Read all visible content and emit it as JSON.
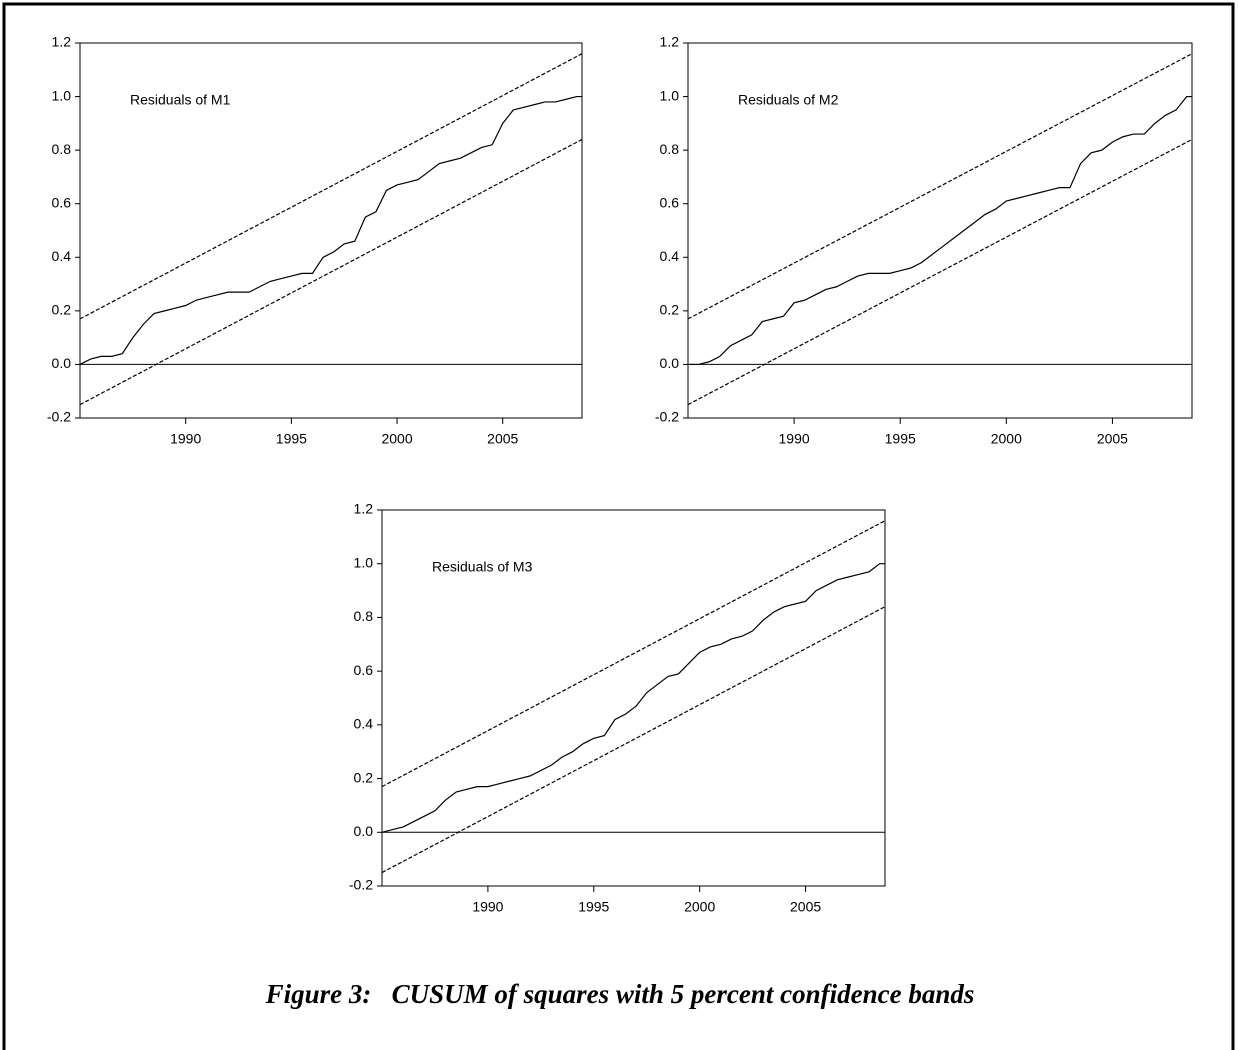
{
  "chart_data": [
    {
      "type": "line",
      "annotation": "Residuals of M1",
      "xlim": [
        1985,
        2008.75
      ],
      "ylim": [
        -0.2,
        1.2
      ],
      "xticks": [
        1990,
        1995,
        2000,
        2005
      ],
      "yticks": [
        -0.2,
        {
          "value": 0,
          "label": "0.0"
        },
        0.2,
        0.4,
        0.6,
        0.8,
        {
          "value": 1,
          "label": "1.0"
        },
        1.2
      ],
      "hline": 0,
      "series": [
        {
          "color": "#000000",
          "style": "solid",
          "x": [
            1985,
            1985.5,
            1986,
            1986.5,
            1987,
            1987.5,
            1988,
            1988.5,
            1989,
            1989.5,
            1990,
            1990.5,
            1991,
            1991.5,
            1992,
            1992.5,
            1993,
            1993.5,
            1994,
            1994.5,
            1995,
            1995.5,
            1996,
            1996.5,
            1997,
            1997.5,
            1998,
            1998.5,
            1999,
            1999.5,
            2000,
            2000.5,
            2001,
            2001.5,
            2002,
            2002.5,
            2003,
            2003.5,
            2004,
            2004.5,
            2005,
            2005.5,
            2006,
            2006.5,
            2007,
            2007.5,
            2008,
            2008.5,
            2008.75
          ],
          "values": [
            0,
            0.02,
            0.03,
            0.03,
            0.04,
            0.1,
            0.15,
            0.19,
            0.2,
            0.21,
            0.22,
            0.24,
            0.25,
            0.26,
            0.27,
            0.27,
            0.27,
            0.29,
            0.31,
            0.32,
            0.33,
            0.34,
            0.34,
            0.4,
            0.42,
            0.45,
            0.46,
            0.55,
            0.57,
            0.65,
            0.67,
            0.68,
            0.69,
            0.72,
            0.75,
            0.76,
            0.77,
            0.79,
            0.81,
            0.82,
            0.9,
            0.95,
            0.96,
            0.97,
            0.98,
            0.98,
            0.99,
            1.0,
            1.0
          ]
        },
        {
          "color": "#000000",
          "style": "dashed",
          "x": [
            1985,
            2008.75
          ],
          "values": [
            0.17,
            1.16
          ]
        },
        {
          "color": "#000000",
          "style": "dashed",
          "x": [
            1985,
            2008.75
          ],
          "values": [
            -0.15,
            0.84
          ]
        }
      ]
    },
    {
      "type": "line",
      "annotation": "Residuals of M2",
      "xlim": [
        1985,
        2008.75
      ],
      "ylim": [
        -0.2,
        1.2
      ],
      "xticks": [
        1990,
        1995,
        2000,
        2005
      ],
      "yticks": [
        -0.2,
        {
          "value": 0,
          "label": "0.0"
        },
        0.2,
        0.4,
        0.6,
        0.8,
        {
          "value": 1,
          "label": "1.0"
        },
        1.2
      ],
      "hline": 0,
      "series": [
        {
          "color": "#000000",
          "style": "solid",
          "x": [
            1985,
            1985.5,
            1986,
            1986.5,
            1987,
            1987.5,
            1988,
            1988.5,
            1989,
            1989.5,
            1990,
            1990.5,
            1991,
            1991.5,
            1992,
            1992.5,
            1993,
            1993.5,
            1994,
            1994.5,
            1995,
            1995.5,
            1996,
            1996.5,
            1997,
            1997.5,
            1998,
            1998.5,
            1999,
            1999.5,
            2000,
            2000.5,
            2001,
            2001.5,
            2002,
            2002.5,
            2003,
            2003.5,
            2004,
            2004.5,
            2005,
            2005.5,
            2006,
            2006.5,
            2007,
            2007.5,
            2008,
            2008.5,
            2008.75
          ],
          "values": [
            0,
            0,
            0.01,
            0.03,
            0.07,
            0.09,
            0.11,
            0.16,
            0.17,
            0.18,
            0.23,
            0.24,
            0.26,
            0.28,
            0.29,
            0.31,
            0.33,
            0.34,
            0.34,
            0.34,
            0.35,
            0.36,
            0.38,
            0.41,
            0.44,
            0.47,
            0.5,
            0.53,
            0.56,
            0.58,
            0.61,
            0.62,
            0.63,
            0.64,
            0.65,
            0.66,
            0.66,
            0.75,
            0.79,
            0.8,
            0.83,
            0.85,
            0.86,
            0.86,
            0.9,
            0.93,
            0.95,
            1.0,
            1.0
          ]
        },
        {
          "color": "#000000",
          "style": "dashed",
          "x": [
            1985,
            2008.75
          ],
          "values": [
            0.17,
            1.16
          ]
        },
        {
          "color": "#000000",
          "style": "dashed",
          "x": [
            1985,
            2008.75
          ],
          "values": [
            -0.15,
            0.84
          ]
        }
      ]
    },
    {
      "type": "line",
      "annotation": "Residuals of M3",
      "xlim": [
        1985,
        2008.75
      ],
      "ylim": [
        -0.2,
        1.2
      ],
      "xticks": [
        1990,
        1995,
        2000,
        2005
      ],
      "yticks": [
        -0.2,
        {
          "value": 0,
          "label": "0.0"
        },
        0.2,
        0.4,
        0.6,
        0.8,
        {
          "value": 1,
          "label": "1.0"
        },
        1.2
      ],
      "hline": 0,
      "series": [
        {
          "color": "#000000",
          "style": "solid",
          "x": [
            1985,
            1985.5,
            1986,
            1986.5,
            1987,
            1987.5,
            1988,
            1988.5,
            1989,
            1989.5,
            1990,
            1990.5,
            1991,
            1991.5,
            1992,
            1992.5,
            1993,
            1993.5,
            1994,
            1994.5,
            1995,
            1995.5,
            1996,
            1996.5,
            1997,
            1997.5,
            1998,
            1998.5,
            1999,
            1999.5,
            2000,
            2000.5,
            2001,
            2001.5,
            2002,
            2002.5,
            2003,
            2003.5,
            2004,
            2004.5,
            2005,
            2005.5,
            2006,
            2006.5,
            2007,
            2007.5,
            2008,
            2008.5,
            2008.75
          ],
          "values": [
            0,
            0.01,
            0.02,
            0.04,
            0.06,
            0.08,
            0.12,
            0.15,
            0.16,
            0.17,
            0.17,
            0.18,
            0.19,
            0.2,
            0.21,
            0.23,
            0.25,
            0.28,
            0.3,
            0.33,
            0.35,
            0.36,
            0.42,
            0.44,
            0.47,
            0.52,
            0.55,
            0.58,
            0.59,
            0.63,
            0.67,
            0.69,
            0.7,
            0.72,
            0.73,
            0.75,
            0.79,
            0.82,
            0.84,
            0.85,
            0.86,
            0.9,
            0.92,
            0.94,
            0.95,
            0.96,
            0.97,
            1.0,
            1.0
          ]
        },
        {
          "color": "#000000",
          "style": "dashed",
          "x": [
            1985,
            2008.75
          ],
          "values": [
            0.17,
            1.16
          ]
        },
        {
          "color": "#000000",
          "style": "dashed",
          "x": [
            1985,
            2008.75
          ],
          "values": [
            -0.15,
            0.84
          ]
        }
      ]
    }
  ],
  "caption": "Figure 3:   CUSUM of squares with 5 percent confidence bands"
}
